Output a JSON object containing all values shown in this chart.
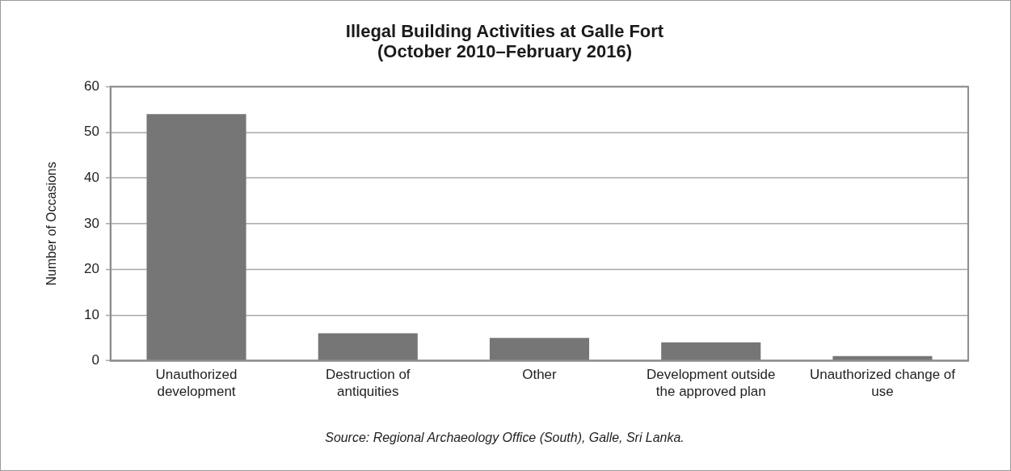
{
  "chart_data": {
    "type": "bar",
    "title": "Illegal Building Activities at Galle Fort (October 2010–February 2016)",
    "ylabel": "Number of Occasions",
    "categories": [
      "Unauthorized development",
      "Destruction of antiquities",
      "Other",
      "Development outside the approved plan",
      "Unauthorized change of use"
    ],
    "values": [
      54,
      6,
      5,
      4,
      1
    ],
    "color": "#767676",
    "ylim": [
      0,
      60
    ],
    "yticks": [
      0,
      10,
      20,
      30,
      40,
      50,
      60
    ],
    "grid": "y",
    "legend": false,
    "annotations": [
      "Source: Regional Archaeology Office (South), Galle, Sri Lanka."
    ]
  }
}
